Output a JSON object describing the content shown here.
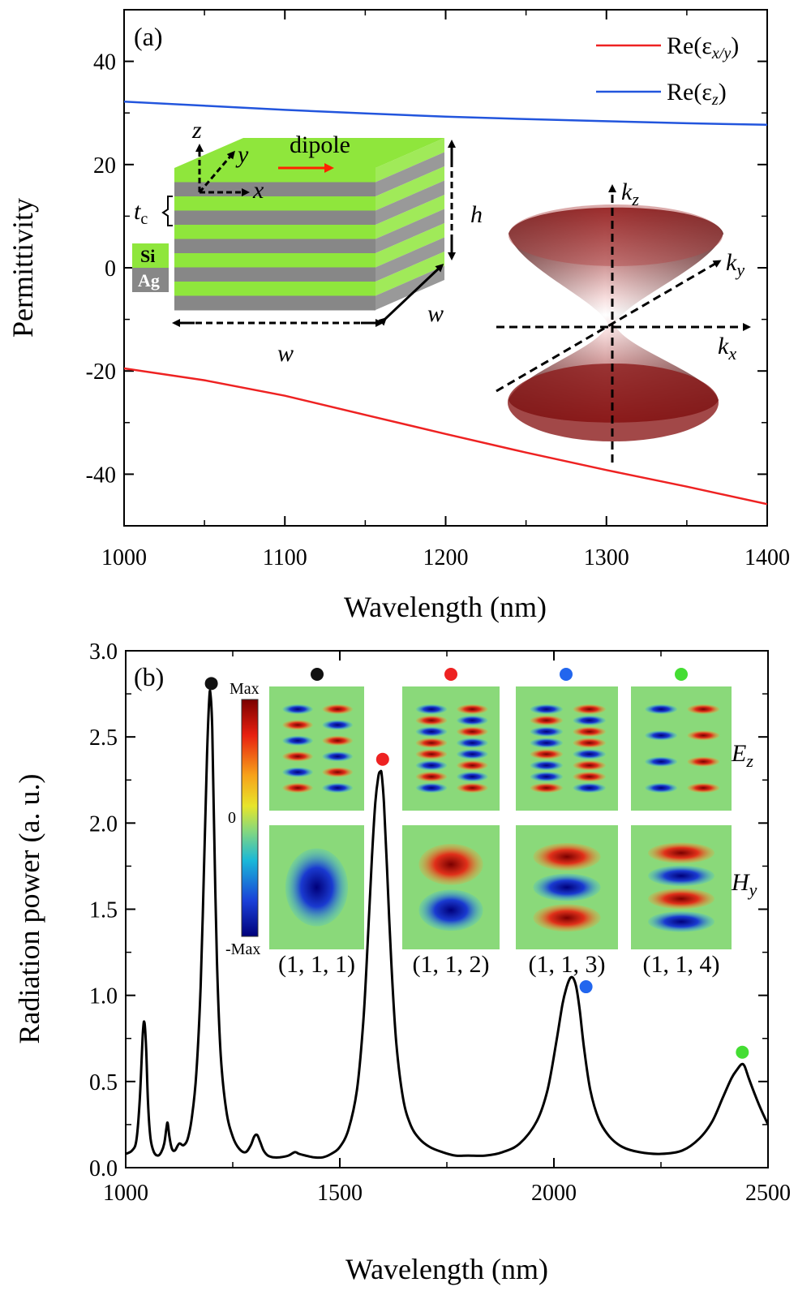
{
  "chart_data": [
    {
      "type": "line",
      "panel_label": "(a)",
      "xlabel": "Wavelength (nm)",
      "ylabel": "Permittivity",
      "xlim": [
        1000,
        1400
      ],
      "ylim": [
        -50,
        50
      ],
      "xticks": [
        "1000",
        "1100",
        "1200",
        "1300",
        "1400"
      ],
      "yticks": [
        "-40",
        "-20",
        "0",
        "20",
        "40"
      ],
      "legend_position": "top-right",
      "series": [
        {
          "name": "Re(ε",
          "name_sub": "x/y",
          "name_close": ")",
          "color": "#ee2222",
          "x": [
            1000,
            1050,
            1100,
            1150,
            1200,
            1250,
            1300,
            1350,
            1400
          ],
          "y": [
            -19.5,
            -21.8,
            -24.8,
            -28.5,
            -32.2,
            -35.8,
            -39.2,
            -42.4,
            -45.8
          ]
        },
        {
          "name": "Re(ε",
          "name_sub": "z",
          "name_close": ")",
          "color": "#2255dd",
          "x": [
            1000,
            1050,
            1100,
            1150,
            1200,
            1250,
            1300,
            1350,
            1400
          ],
          "y": [
            32.2,
            31.4,
            30.6,
            29.9,
            29.3,
            28.8,
            28.4,
            28.0,
            27.7
          ]
        }
      ],
      "inset_structure": {
        "labels": {
          "z": "z",
          "y": "y",
          "x": "x",
          "dipole": "dipole",
          "tc": "t",
          "tc_sub": "c",
          "h": "h",
          "w1": "w",
          "w2": "w",
          "si": "Si",
          "ag": "Ag"
        },
        "colors": {
          "si": "#8fe63c",
          "ag": "#878787",
          "dipole": "#ff2200"
        }
      },
      "inset_dispersion": {
        "labels": {
          "kz": "k",
          "kz_sub": "z",
          "ky": "k",
          "ky_sub": "y",
          "kx": "k",
          "kx_sub": "x"
        },
        "colors": {
          "surface": "#8b1a1a"
        }
      }
    },
    {
      "type": "line",
      "panel_label": "(b)",
      "xlabel": "Wavelength (nm)",
      "ylabel": "Radiation power (a. u.)",
      "xlim": [
        1000,
        2500
      ],
      "ylim": [
        0,
        3.0
      ],
      "xticks": [
        "1000",
        "1500",
        "2000",
        "2500"
      ],
      "yticks": [
        "0.0",
        "0.5",
        "1.0",
        "1.5",
        "2.0",
        "2.5",
        "3.0"
      ],
      "series": [
        {
          "color": "#000000",
          "x": [
            1000,
            1015,
            1025,
            1033,
            1040,
            1044,
            1048,
            1052,
            1058,
            1066,
            1075,
            1083,
            1090,
            1095,
            1098,
            1102,
            1108,
            1115,
            1125,
            1135,
            1145,
            1155,
            1165,
            1175,
            1183,
            1190,
            1195,
            1198,
            1202,
            1207,
            1213,
            1222,
            1235,
            1250,
            1265,
            1280,
            1292,
            1300,
            1307,
            1314,
            1322,
            1332,
            1345,
            1360,
            1380,
            1395,
            1405,
            1420,
            1440,
            1460,
            1480,
            1500,
            1520,
            1540,
            1555,
            1565,
            1575,
            1583,
            1590,
            1595,
            1598,
            1603,
            1610,
            1620,
            1632,
            1648,
            1665,
            1685,
            1710,
            1740,
            1770,
            1800,
            1840,
            1880,
            1920,
            1960,
            1985,
            2005,
            2020,
            2030,
            2038,
            2045,
            2052,
            2060,
            2070,
            2085,
            2105,
            2130,
            2160,
            2200,
            2250,
            2300,
            2340,
            2370,
            2395,
            2415,
            2428,
            2438,
            2445,
            2455,
            2470,
            2485,
            2500
          ],
          "y": [
            0.08,
            0.1,
            0.16,
            0.4,
            0.78,
            0.84,
            0.68,
            0.38,
            0.17,
            0.09,
            0.07,
            0.09,
            0.14,
            0.23,
            0.26,
            0.18,
            0.11,
            0.1,
            0.14,
            0.13,
            0.17,
            0.3,
            0.55,
            1.05,
            1.75,
            2.4,
            2.72,
            2.75,
            2.55,
            1.9,
            1.2,
            0.65,
            0.33,
            0.18,
            0.11,
            0.09,
            0.13,
            0.18,
            0.19,
            0.15,
            0.1,
            0.07,
            0.06,
            0.06,
            0.07,
            0.09,
            0.08,
            0.07,
            0.06,
            0.06,
            0.08,
            0.12,
            0.22,
            0.45,
            0.85,
            1.3,
            1.8,
            2.12,
            2.27,
            2.3,
            2.28,
            2.12,
            1.75,
            1.2,
            0.72,
            0.4,
            0.25,
            0.17,
            0.12,
            0.09,
            0.07,
            0.07,
            0.07,
            0.09,
            0.14,
            0.27,
            0.45,
            0.72,
            0.95,
            1.05,
            1.1,
            1.1,
            1.05,
            0.92,
            0.7,
            0.45,
            0.28,
            0.18,
            0.12,
            0.09,
            0.08,
            0.1,
            0.17,
            0.27,
            0.41,
            0.52,
            0.57,
            0.6,
            0.59,
            0.52,
            0.42,
            0.33,
            0.25
          ]
        }
      ],
      "markers": [
        {
          "x": 1200,
          "y": 2.81,
          "color": "#111111"
        },
        {
          "x": 1600,
          "y": 2.37,
          "color": "#ee2222"
        },
        {
          "x": 2075,
          "y": 1.05,
          "color": "#2266ee"
        },
        {
          "x": 2440,
          "y": 0.67,
          "color": "#44dd33"
        }
      ],
      "inset_modes": {
        "colorbar": {
          "max": "Max",
          "zero": "0",
          "min": "-Max"
        },
        "row_labels": {
          "ez": "E",
          "ez_sub": "z",
          "hy": "H",
          "hy_sub": "y"
        },
        "modes": [
          {
            "label": "(1, 1, 1)",
            "dot_color": "#111111"
          },
          {
            "label": "(1, 1, 2)",
            "dot_color": "#ee2222"
          },
          {
            "label": "(1, 1, 3)",
            "dot_color": "#2266ee"
          },
          {
            "label": "(1, 1, 4)",
            "dot_color": "#44dd33"
          }
        ],
        "colors": {
          "background": "#8ad97a",
          "positive": "#e0301a",
          "negative": "#1a3ad0"
        }
      }
    }
  ]
}
